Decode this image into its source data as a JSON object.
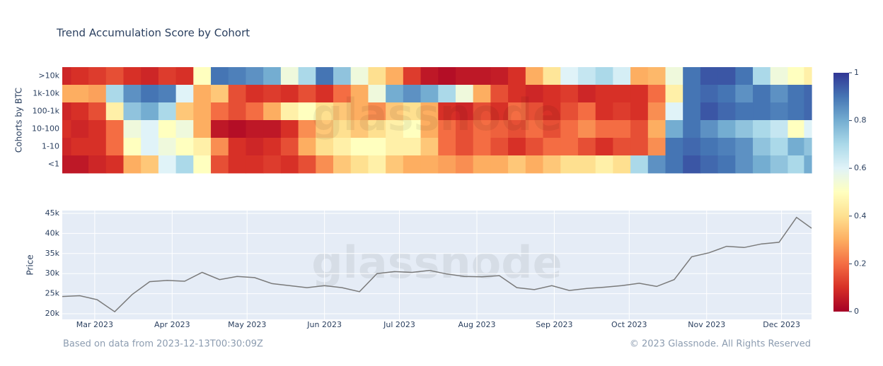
{
  "chart_data": [
    {
      "type": "heatmap",
      "title": "Trend Accumulation Score by Cohort",
      "y_label": "Cohorts by BTC",
      "watermark": "glassnode",
      "x": [
        "2023-02-16",
        "2023-02-23",
        "2023-03-02",
        "2023-03-09",
        "2023-03-16",
        "2023-03-23",
        "2023-03-30",
        "2023-04-06",
        "2023-04-13",
        "2023-04-20",
        "2023-04-27",
        "2023-05-04",
        "2023-05-11",
        "2023-05-18",
        "2023-05-25",
        "2023-06-01",
        "2023-06-08",
        "2023-06-15",
        "2023-06-22",
        "2023-06-29",
        "2023-07-06",
        "2023-07-13",
        "2023-07-20",
        "2023-07-27",
        "2023-08-03",
        "2023-08-10",
        "2023-08-17",
        "2023-08-24",
        "2023-08-31",
        "2023-09-07",
        "2023-09-14",
        "2023-09-21",
        "2023-09-28",
        "2023-10-05",
        "2023-10-12",
        "2023-10-19",
        "2023-10-26",
        "2023-11-02",
        "2023-11-09",
        "2023-11-16",
        "2023-11-23",
        "2023-11-30",
        "2023-12-07",
        "2023-12-13"
      ],
      "xlim": [
        "2023-02-16",
        "2023-12-13"
      ],
      "categories": [
        ">10k",
        "1k-10k",
        "100-1k",
        "10-100",
        "1-10",
        "<1"
      ],
      "z": [
        [
          0.08,
          0.1,
          0.12,
          0.15,
          0.1,
          0.08,
          0.12,
          0.1,
          0.5,
          0.9,
          0.88,
          0.85,
          0.8,
          0.55,
          0.7,
          0.9,
          0.75,
          0.55,
          0.4,
          0.3,
          0.12,
          0.05,
          0.03,
          0.05,
          0.05,
          0.06,
          0.1,
          0.3,
          0.42,
          0.6,
          0.65,
          0.7,
          0.62,
          0.3,
          0.32,
          0.55,
          0.9,
          0.95,
          0.95,
          0.9,
          0.7,
          0.55,
          0.5,
          0.45
        ],
        [
          0.3,
          0.3,
          0.28,
          0.7,
          0.85,
          0.9,
          0.88,
          0.6,
          0.3,
          0.35,
          0.15,
          0.1,
          0.12,
          0.1,
          0.15,
          0.1,
          0.2,
          0.3,
          0.55,
          0.8,
          0.85,
          0.8,
          0.7,
          0.55,
          0.3,
          0.15,
          0.1,
          0.08,
          0.1,
          0.12,
          0.08,
          0.1,
          0.1,
          0.1,
          0.2,
          0.45,
          0.9,
          0.92,
          0.9,
          0.85,
          0.9,
          0.85,
          0.9,
          0.92
        ],
        [
          0.08,
          0.1,
          0.15,
          0.45,
          0.75,
          0.8,
          0.7,
          0.35,
          0.3,
          0.2,
          0.15,
          0.2,
          0.3,
          0.45,
          0.5,
          0.4,
          0.35,
          0.3,
          0.25,
          0.35,
          0.4,
          0.3,
          0.1,
          0.08,
          0.15,
          0.1,
          0.2,
          0.15,
          0.1,
          0.15,
          0.2,
          0.1,
          0.12,
          0.1,
          0.25,
          0.6,
          0.9,
          0.95,
          0.92,
          0.9,
          0.9,
          0.88,
          0.9,
          0.92
        ],
        [
          0.1,
          0.08,
          0.1,
          0.2,
          0.55,
          0.6,
          0.5,
          0.55,
          0.3,
          0.05,
          0.03,
          0.05,
          0.05,
          0.1,
          0.25,
          0.35,
          0.4,
          0.35,
          0.4,
          0.45,
          0.5,
          0.3,
          0.2,
          0.15,
          0.2,
          0.18,
          0.15,
          0.2,
          0.15,
          0.2,
          0.25,
          0.2,
          0.2,
          0.15,
          0.3,
          0.8,
          0.9,
          0.85,
          0.8,
          0.75,
          0.7,
          0.65,
          0.5,
          0.6
        ],
        [
          0.08,
          0.1,
          0.1,
          0.2,
          0.5,
          0.6,
          0.55,
          0.5,
          0.45,
          0.25,
          0.1,
          0.08,
          0.1,
          0.15,
          0.3,
          0.4,
          0.45,
          0.5,
          0.5,
          0.45,
          0.45,
          0.35,
          0.2,
          0.15,
          0.2,
          0.15,
          0.1,
          0.15,
          0.2,
          0.2,
          0.15,
          0.1,
          0.15,
          0.15,
          0.25,
          0.9,
          0.92,
          0.9,
          0.88,
          0.85,
          0.75,
          0.7,
          0.8,
          0.75
        ],
        [
          0.05,
          0.05,
          0.08,
          0.1,
          0.3,
          0.35,
          0.6,
          0.7,
          0.5,
          0.15,
          0.1,
          0.1,
          0.12,
          0.1,
          0.15,
          0.25,
          0.35,
          0.4,
          0.45,
          0.35,
          0.3,
          0.3,
          0.28,
          0.25,
          0.3,
          0.3,
          0.35,
          0.3,
          0.35,
          0.4,
          0.4,
          0.45,
          0.4,
          0.7,
          0.85,
          0.9,
          0.95,
          0.92,
          0.9,
          0.85,
          0.8,
          0.75,
          0.7,
          0.8
        ]
      ],
      "zlim": [
        0,
        1
      ],
      "colorbar_ticks": [
        0,
        0.2,
        0.4,
        0.6,
        0.8,
        1
      ],
      "colorscale": [
        [
          0,
          "#a50026"
        ],
        [
          0.1,
          "#d73027"
        ],
        [
          0.2,
          "#f46d43"
        ],
        [
          0.3,
          "#fdae61"
        ],
        [
          0.4,
          "#fee090"
        ],
        [
          0.5,
          "#ffffbf"
        ],
        [
          0.6,
          "#e0f3f8"
        ],
        [
          0.7,
          "#abd9e9"
        ],
        [
          0.8,
          "#74add1"
        ],
        [
          0.9,
          "#4575b4"
        ],
        [
          1,
          "#313695"
        ]
      ]
    },
    {
      "type": "line",
      "y_label": "Price",
      "color": "#7a7a7a",
      "watermark": "glassnode",
      "grid": true,
      "x": [
        "2023-02-16",
        "2023-02-23",
        "2023-03-02",
        "2023-03-09",
        "2023-03-16",
        "2023-03-23",
        "2023-03-30",
        "2023-04-06",
        "2023-04-13",
        "2023-04-20",
        "2023-04-27",
        "2023-05-04",
        "2023-05-11",
        "2023-05-18",
        "2023-05-25",
        "2023-06-01",
        "2023-06-08",
        "2023-06-15",
        "2023-06-22",
        "2023-06-29",
        "2023-07-06",
        "2023-07-13",
        "2023-07-20",
        "2023-07-27",
        "2023-08-03",
        "2023-08-10",
        "2023-08-17",
        "2023-08-24",
        "2023-08-31",
        "2023-09-07",
        "2023-09-14",
        "2023-09-21",
        "2023-09-28",
        "2023-10-05",
        "2023-10-12",
        "2023-10-19",
        "2023-10-26",
        "2023-11-02",
        "2023-11-09",
        "2023-11-16",
        "2023-11-23",
        "2023-11-30",
        "2023-12-07",
        "2023-12-13"
      ],
      "values": [
        24300,
        24500,
        23500,
        20500,
        24800,
        28000,
        28300,
        28100,
        30300,
        28500,
        29300,
        29000,
        27500,
        27000,
        26500,
        27000,
        26500,
        25500,
        30000,
        30500,
        30300,
        30800,
        29900,
        29300,
        29200,
        29500,
        26500,
        26000,
        27000,
        25800,
        26300,
        26600,
        27000,
        27600,
        26800,
        28500,
        34200,
        35200,
        36800,
        36500,
        37400,
        37800,
        44000,
        41300
      ],
      "xlim": [
        "2023-02-16",
        "2023-12-13"
      ],
      "xticks": [
        {
          "value": "2023-03-01",
          "label": "Mar 2023"
        },
        {
          "value": "2023-04-01",
          "label": "Apr 2023"
        },
        {
          "value": "2023-05-01",
          "label": "May 2023"
        },
        {
          "value": "2023-06-01",
          "label": "Jun 2023"
        },
        {
          "value": "2023-07-01",
          "label": "Jul 2023"
        },
        {
          "value": "2023-08-01",
          "label": "Aug 2023"
        },
        {
          "value": "2023-09-01",
          "label": "Sep 2023"
        },
        {
          "value": "2023-10-01",
          "label": "Oct 2023"
        },
        {
          "value": "2023-11-01",
          "label": "Nov 2023"
        },
        {
          "value": "2023-12-01",
          "label": "Dec 2023"
        }
      ],
      "ylim": [
        18600,
        45700
      ],
      "yticks": [
        {
          "value": 20000,
          "label": "20k"
        },
        {
          "value": 25000,
          "label": "25k"
        },
        {
          "value": 30000,
          "label": "30k"
        },
        {
          "value": 35000,
          "label": "35k"
        },
        {
          "value": 40000,
          "label": "40k"
        },
        {
          "value": 45000,
          "label": "45k"
        }
      ]
    }
  ],
  "footer": {
    "source": "Based on data from 2023-12-13T00:30:09Z",
    "copyright": "© 2023 Glassnode. All Rights Reserved"
  }
}
